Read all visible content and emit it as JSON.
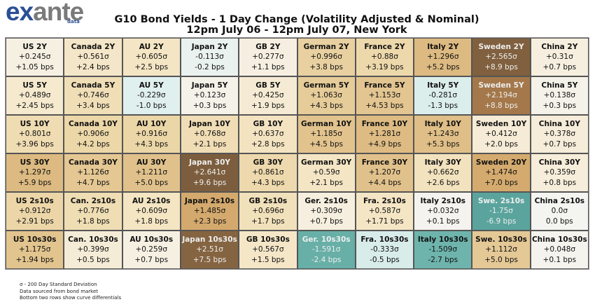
{
  "logo": {
    "part1": "ex",
    "part2": "ante",
    "sub": "data"
  },
  "title_line1": "G10 Bond Yields - 1 Day Change (Volatility Adjusted & Nominal)",
  "title_line2": "12pm July 06 - 12pm July 07, New York",
  "chart_data": {
    "type": "heatmap",
    "value_unit": "σ",
    "colormap": {
      "stops": [
        {
          "v": -1.8,
          "color": "#56a19a"
        },
        {
          "v": -1.5,
          "color": "#6fb5ad"
        },
        {
          "v": -0.8,
          "color": "#b5dcd6"
        },
        {
          "v": -0.2,
          "color": "#e2f1ef"
        },
        {
          "v": 0.0,
          "color": "#f4f4f1"
        },
        {
          "v": 0.3,
          "color": "#f6efe0"
        },
        {
          "v": 0.6,
          "color": "#f4e5c4"
        },
        {
          "v": 0.9,
          "color": "#ecd7a9"
        },
        {
          "v": 1.2,
          "color": "#e1c28c"
        },
        {
          "v": 1.5,
          "color": "#d3a86b"
        },
        {
          "v": 2.2,
          "color": "#a4784a"
        },
        {
          "v": 2.6,
          "color": "#7c5e3e"
        }
      ]
    },
    "rows": [
      [
        {
          "name": "US 2Y",
          "sigma": "+0.245σ",
          "bps": "+1.05 bps"
        },
        {
          "name": "Canada 2Y",
          "sigma": "+0.561σ",
          "bps": "+2.4 bps"
        },
        {
          "name": "AU 2Y",
          "sigma": "+0.605σ",
          "bps": "+2.5 bps"
        },
        {
          "name": "Japan 2Y",
          "sigma": "-0.113σ",
          "bps": "-0.2 bps"
        },
        {
          "name": "GB 2Y",
          "sigma": "+0.277σ",
          "bps": "+1.1 bps"
        },
        {
          "name": "German 2Y",
          "sigma": "+0.996σ",
          "bps": "+3.8 bps"
        },
        {
          "name": "France 2Y",
          "sigma": "+0.88σ",
          "bps": "+3.19 bps"
        },
        {
          "name": "Italy 2Y",
          "sigma": "+1.296σ",
          "bps": "+5.2 bps"
        },
        {
          "name": "Sweden 2Y",
          "sigma": "+2.565σ",
          "bps": "+8.9 bps"
        },
        {
          "name": "China 2Y",
          "sigma": "+0.31σ",
          "bps": "+0.7 bps"
        }
      ],
      [
        {
          "name": "US 5Y",
          "sigma": "+0.489σ",
          "bps": "+2.45 bps"
        },
        {
          "name": "Canada 5Y",
          "sigma": "+0.746σ",
          "bps": "+3.4 bps"
        },
        {
          "name": "AU 5Y",
          "sigma": "-0.229σ",
          "bps": "-1.0 bps"
        },
        {
          "name": "Japan 5Y",
          "sigma": "+0.123σ",
          "bps": "+0.3 bps"
        },
        {
          "name": "GB 5Y",
          "sigma": "+0.425σ",
          "bps": "+1.9 bps"
        },
        {
          "name": "German 5Y",
          "sigma": "+1.063σ",
          "bps": "+4.3 bps"
        },
        {
          "name": "France 5Y",
          "sigma": "+1.153σ",
          "bps": "+4.53 bps"
        },
        {
          "name": "Italy 5Y",
          "sigma": "-0.281σ",
          "bps": "-1.3 bps"
        },
        {
          "name": "Sweden 5Y",
          "sigma": "+2.194σ",
          "bps": "+8.8 bps"
        },
        {
          "name": "China 5Y",
          "sigma": "+0.138σ",
          "bps": "+0.3 bps"
        }
      ],
      [
        {
          "name": "US 10Y",
          "sigma": "+0.801σ",
          "bps": "+3.96 bps"
        },
        {
          "name": "Canada 10Y",
          "sigma": "+0.906σ",
          "bps": "+4.2 bps"
        },
        {
          "name": "AU 10Y",
          "sigma": "+0.916σ",
          "bps": "+4.3 bps"
        },
        {
          "name": "Japan 10Y",
          "sigma": "+0.768σ",
          "bps": "+2.1 bps"
        },
        {
          "name": "GB 10Y",
          "sigma": "+0.637σ",
          "bps": "+2.8 bps"
        },
        {
          "name": "German 10Y",
          "sigma": "+1.185σ",
          "bps": "+4.5 bps"
        },
        {
          "name": "France 10Y",
          "sigma": "+1.281σ",
          "bps": "+4.9 bps"
        },
        {
          "name": "Italy 10Y",
          "sigma": "+1.243σ",
          "bps": "+5.3 bps"
        },
        {
          "name": "Sweden 10Y",
          "sigma": "+0.412σ",
          "bps": "+2.0 bps"
        },
        {
          "name": "China 10Y",
          "sigma": "+0.378σ",
          "bps": "+0.7 bps"
        }
      ],
      [
        {
          "name": "US 30Y",
          "sigma": "+1.297σ",
          "bps": "+5.9 bps"
        },
        {
          "name": "Canada 30Y",
          "sigma": "+1.126σ",
          "bps": "+4.7 bps"
        },
        {
          "name": "AU 30Y",
          "sigma": "+1.211σ",
          "bps": "+5.0 bps"
        },
        {
          "name": "Japan 30Y",
          "sigma": "+2.641σ",
          "bps": "+9.6 bps"
        },
        {
          "name": "GB 30Y",
          "sigma": "+0.861σ",
          "bps": "+4.3 bps"
        },
        {
          "name": "German 30Y",
          "sigma": "+0.59σ",
          "bps": "+2.1 bps"
        },
        {
          "name": "France 30Y",
          "sigma": "+1.207σ",
          "bps": "+4.4 bps"
        },
        {
          "name": "Italy 30Y",
          "sigma": "+0.662σ",
          "bps": "+2.6 bps"
        },
        {
          "name": "Sweden 20Y",
          "sigma": "+1.474σ",
          "bps": "+7.0 bps"
        },
        {
          "name": "China 30Y",
          "sigma": "+0.359σ",
          "bps": "+0.8 bps"
        }
      ],
      [
        {
          "name": "US 2s10s",
          "sigma": "+0.912σ",
          "bps": "+2.91 bps"
        },
        {
          "name": "Can. 2s10s",
          "sigma": "+0.776σ",
          "bps": "+1.8 bps"
        },
        {
          "name": "AU 2s10s",
          "sigma": "+0.609σ",
          "bps": "+1.8 bps"
        },
        {
          "name": "Japan 2s10s",
          "sigma": "+1.485σ",
          "bps": "+2.3 bps"
        },
        {
          "name": "GB 2s10s",
          "sigma": "+0.696σ",
          "bps": "+1.7 bps"
        },
        {
          "name": "Ger. 2s10s",
          "sigma": "+0.309σ",
          "bps": "+0.7 bps"
        },
        {
          "name": "Fra. 2s10s",
          "sigma": "+0.587σ",
          "bps": "+1.71 bps"
        },
        {
          "name": "Italy 2s10s",
          "sigma": "+0.032σ",
          "bps": "+0.1 bps"
        },
        {
          "name": "Swe. 2s10s",
          "sigma": "-1.75σ",
          "bps": "-6.9 bps"
        },
        {
          "name": "China 2s10s",
          "sigma": "0.0σ",
          "bps": "0.0 bps"
        }
      ],
      [
        {
          "name": "US 10s30s",
          "sigma": "+1.175σ",
          "bps": "+1.94 bps"
        },
        {
          "name": "Can. 10s30s",
          "sigma": "+0.399σ",
          "bps": "+0.5 bps"
        },
        {
          "name": "AU 10s30s",
          "sigma": "+0.259σ",
          "bps": "+0.7 bps"
        },
        {
          "name": "Japan 10s30s",
          "sigma": "+2.51σ",
          "bps": "+7.5 bps"
        },
        {
          "name": "GB 10s30s",
          "sigma": "+0.567σ",
          "bps": "+1.5 bps"
        },
        {
          "name": "Ger. 10s30s",
          "sigma": "-1.591σ",
          "bps": "-2.4 bps"
        },
        {
          "name": "Fra. 10s30s",
          "sigma": "-0.333σ",
          "bps": "-0.5 bps"
        },
        {
          "name": "Italy 10s30s",
          "sigma": "-1.509σ",
          "bps": "-2.7 bps"
        },
        {
          "name": "Swe. 10s30s",
          "sigma": "+1.112σ",
          "bps": "+5.0 bps"
        },
        {
          "name": "China 10s30s",
          "sigma": "+0.048σ",
          "bps": "+0.1 bps"
        }
      ]
    ]
  },
  "notes": [
    "σ - 200 Day Standard Deviation",
    "Data sourced from bond market",
    "Bottom two rows show curve differentials"
  ]
}
